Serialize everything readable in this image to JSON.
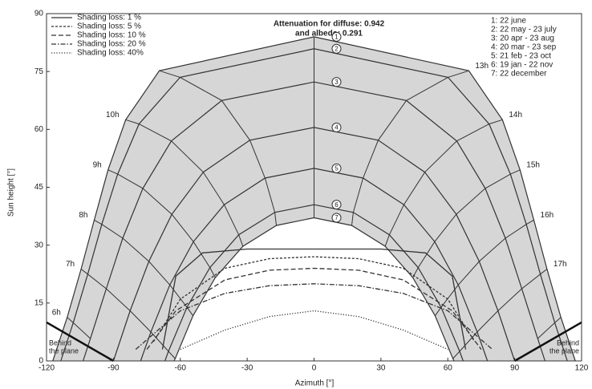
{
  "chart_data": {
    "type": "sunpath",
    "annotations": [
      "Attenuation for diffuse: 0.942",
      "and albedo: 0.291"
    ],
    "x_label": "Azimuth [°]",
    "y_label": "Sun height [°]",
    "xlim": [
      -120,
      120
    ],
    "xticks": [
      -120,
      -90,
      -60,
      -30,
      0,
      30,
      60,
      90,
      120
    ],
    "ylim": [
      0,
      90
    ],
    "yticks": [
      0,
      15,
      30,
      45,
      60,
      75,
      90
    ],
    "grid": false,
    "color": "#333333",
    "shade_color": "#d6d6d6",
    "hour_labels": [
      "6h",
      "7h",
      "8h",
      "9h",
      "10h",
      null,
      null,
      "13h",
      "14h",
      "15h",
      "16h",
      "17h",
      null
    ],
    "series": [
      {
        "name": "1: 22 june",
        "marker_label": "1",
        "rise": {
          "x": -117.2,
          "y": 0
        },
        "set": {
          "x": 117.2,
          "y": 0
        },
        "x": [
          -110.7,
          -104.5,
          -98.6,
          -92.4,
          -84.5,
          -69.4,
          0,
          69.4,
          84.5,
          92.4,
          98.6,
          104.5,
          110.7
        ],
        "values": [
          11.3,
          23.8,
          36.5,
          49.5,
          62.5,
          75.2,
          84.0,
          75.2,
          62.5,
          49.5,
          36.5,
          23.8,
          11.3
        ]
      },
      {
        "name": "2: 22 may - 23 july",
        "marker_label": "2",
        "rise": {
          "x": -113.6,
          "y": 0
        },
        "set": {
          "x": 113.6,
          "y": 0
        },
        "x": [
          -108.0,
          -101.5,
          -95.2,
          -88.1,
          -78.5,
          -60.1,
          0,
          60.1,
          78.5,
          88.1,
          95.2,
          101.5,
          108.0
        ],
        "values": [
          9.9,
          22.5,
          35.4,
          48.4,
          61.4,
          73.5,
          80.9,
          73.5,
          61.4,
          48.4,
          35.4,
          22.5,
          9.9
        ]
      },
      {
        "name": "3: 20 apr - 23 aug",
        "marker_label": "3",
        "rise": {
          "x": -103.6,
          "y": 0
        },
        "set": {
          "x": 103.6,
          "y": 0
        },
        "x": [
          -100.3,
          -93.2,
          -85.8,
          -76.8,
          -64.0,
          -41.4,
          0,
          41.4,
          64.0,
          76.8,
          85.8,
          93.2,
          100.3
        ],
        "values": [
          5.8,
          18.7,
          31.8,
          44.7,
          57.0,
          67.5,
          72.3,
          67.5,
          57.0,
          44.7,
          31.8,
          18.7,
          5.8
        ]
      },
      {
        "name": "4: 20 mar - 23 sep",
        "marker_label": "4",
        "rise": {
          "x": -90,
          "y": 0
        },
        "set": {
          "x": 90,
          "y": 0
        },
        "x": [
          null,
          -82.5,
          -74.1,
          -63.8,
          -49.7,
          -28.8,
          0,
          28.8,
          49.7,
          63.8,
          74.1,
          82.5,
          null
        ],
        "values": [
          null,
          13.0,
          25.8,
          38.0,
          48.9,
          57.2,
          60.5,
          57.2,
          48.9,
          38.0,
          25.8,
          13.0,
          null
        ]
      },
      {
        "name": "5: 21 feb - 23 oct",
        "marker_label": "5",
        "rise": {
          "x": -77.8,
          "y": 0
        },
        "set": {
          "x": 77.8,
          "y": 0
        },
        "x": [
          null,
          -73.2,
          -64.7,
          -54.1,
          -40.3,
          -22.0,
          0,
          22.0,
          40.3,
          54.1,
          64.7,
          73.2,
          null
        ],
        "values": [
          null,
          7.5,
          19.7,
          30.9,
          40.5,
          47.4,
          49.9,
          47.4,
          40.5,
          30.9,
          19.7,
          7.5,
          null
        ]
      },
      {
        "name": "6: 19 jan - 22 nov",
        "marker_label": "6",
        "rise": {
          "x": -66.9,
          "y": 0
        },
        "set": {
          "x": 66.9,
          "y": 0
        },
        "x": [
          null,
          -65.3,
          -57.0,
          -46.7,
          -33.8,
          -17.6,
          0,
          17.6,
          33.8,
          46.7,
          57.0,
          65.3,
          null
        ],
        "values": [
          null,
          2.5,
          13.9,
          24.2,
          32.7,
          38.5,
          40.5,
          38.5,
          32.7,
          24.2,
          13.9,
          2.5,
          null
        ]
      },
      {
        "name": "7: 22 december",
        "marker_label": "7",
        "rise": {
          "x": -62.8,
          "y": 0
        },
        "set": {
          "x": 62.8,
          "y": 0
        },
        "x": [
          null,
          -62.3,
          -54.3,
          -44.3,
          -31.9,
          -16.9,
          0,
          16.9,
          31.9,
          44.3,
          54.3,
          62.3,
          null
        ],
        "values": [
          null,
          0.6,
          11.7,
          21.6,
          29.7,
          35.1,
          37.1,
          35.1,
          29.7,
          21.6,
          11.7,
          0.6,
          null
        ]
      }
    ],
    "shading": [
      {
        "name": "Shading loss: 1 %",
        "dash": "solid",
        "x": [
          -68,
          -62,
          -50,
          -30,
          0,
          30,
          50,
          62,
          68
        ],
        "values": [
          3,
          22,
          28,
          29,
          29,
          29,
          28,
          22,
          3
        ]
      },
      {
        "name": "Shading loss: 5 %",
        "dash": "dashed",
        "x": [
          -72,
          -60,
          -40,
          -20,
          0,
          20,
          40,
          60,
          72
        ],
        "values": [
          5,
          16,
          24,
          26.5,
          27,
          26.5,
          24,
          16,
          5
        ]
      },
      {
        "name": "Shading loss: 10 %",
        "dash": "longdash",
        "x": [
          -75,
          -62,
          -40,
          -20,
          0,
          20,
          40,
          62,
          75
        ],
        "values": [
          3,
          13,
          21,
          23.5,
          24,
          23.5,
          21,
          13,
          3
        ]
      },
      {
        "name": "Shading loss: 20 %",
        "dash": "dashdot",
        "x": [
          -80,
          -60,
          -40,
          -20,
          0,
          20,
          40,
          60,
          80
        ],
        "values": [
          3,
          13,
          17.5,
          19.5,
          20,
          19.5,
          17.5,
          13,
          3
        ]
      },
      {
        "name": "Shading loss: 40%",
        "dash": "dotted",
        "x": [
          -60,
          -40,
          -20,
          0,
          20,
          40,
          60
        ],
        "values": [
          3,
          8,
          11.5,
          13,
          11.5,
          8,
          3
        ]
      }
    ],
    "plane": [
      {
        "label": [
          "Behind",
          "the plane"
        ],
        "x": [
          -120,
          -90
        ],
        "values": [
          10,
          0
        ]
      },
      {
        "label": [
          "Behind",
          "the plane"
        ],
        "x": [
          90,
          120
        ],
        "values": [
          0,
          10
        ]
      }
    ]
  }
}
